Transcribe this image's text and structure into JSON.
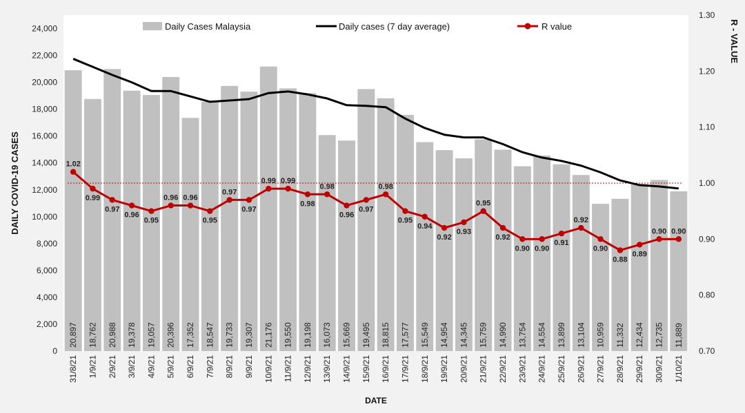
{
  "chart_data": {
    "type": "bar",
    "title": "",
    "xlabel": "DATE",
    "ylabel": "DAILY COVID-19 CASES",
    "y2label": "R - VALUE",
    "ylim": [
      0,
      25000
    ],
    "y2lim": [
      0.7,
      1.3
    ],
    "y_ticks": [
      "0",
      "2,000",
      "4,000",
      "6,000",
      "8,000",
      "10,000",
      "12,000",
      "14,000",
      "16,000",
      "18,000",
      "20,000",
      "22,000",
      "24,000"
    ],
    "y2_ticks": [
      "0.70",
      "0.80",
      "0.90",
      "1.00",
      "1.10",
      "1.20",
      "1.30"
    ],
    "categories": [
      "31/8/21",
      "1/9/21",
      "2/9/21",
      "3/9/21",
      "4/9/21",
      "5/9/21",
      "6/9/21",
      "7/9/21",
      "8/9/21",
      "9/9/21",
      "10/9/21",
      "11/9/21",
      "12/9/21",
      "13/9/21",
      "14/9/21",
      "15/9/21",
      "16/9/21",
      "17/9/21",
      "18/9/21",
      "19/9/21",
      "20/9/21",
      "21/9/21",
      "22/9/21",
      "23/9/21",
      "24/9/21",
      "25/9/21",
      "26/9/21",
      "27/9/21",
      "28/9/21",
      "29/9/21",
      "30/9/21",
      "1/10/21"
    ],
    "series": [
      {
        "name": "Daily Cases Malaysia",
        "axis": "left",
        "kind": "bar",
        "values": [
          20897,
          18762,
          20988,
          19378,
          19057,
          20396,
          17352,
          18547,
          19733,
          19307,
          21176,
          19550,
          19198,
          16073,
          15669,
          19495,
          18815,
          17577,
          15549,
          14954,
          14345,
          15759,
          14990,
          13754,
          14554,
          13899,
          13104,
          10959,
          11332,
          12434,
          12735,
          11889
        ],
        "labels": [
          "20,897",
          "18,762",
          "20,988",
          "19,378",
          "19,057",
          "20,396",
          "17,352",
          "18,547",
          "19,733",
          "19,307",
          "21,176",
          "19,550",
          "19,198",
          "16,073",
          "15,669",
          "19,495",
          "18,815",
          "17,577",
          "15,549",
          "14,954",
          "14,345",
          "15,759",
          "14,990",
          "13,754",
          "14,554",
          "13,899",
          "13,104",
          "10,959",
          "11,332",
          "12,434",
          "12,735",
          "11,889"
        ]
      },
      {
        "name": "Daily cases (7 day average)",
        "axis": "left",
        "kind": "line",
        "values": [
          21750,
          21150,
          20550,
          20000,
          19350,
          19350,
          18950,
          18550,
          18650,
          18750,
          19200,
          19320,
          19100,
          18800,
          18300,
          18250,
          18150,
          17300,
          16600,
          16100,
          15900,
          15900,
          15400,
          14800,
          14400,
          14150,
          13800,
          13300,
          12700,
          12350,
          12250,
          12100
        ]
      },
      {
        "name": "R value",
        "axis": "right",
        "kind": "line-marker",
        "values": [
          1.02,
          0.99,
          0.97,
          0.96,
          0.95,
          0.96,
          0.96,
          0.95,
          0.97,
          0.97,
          0.99,
          0.99,
          0.98,
          0.98,
          0.96,
          0.97,
          0.98,
          0.95,
          0.94,
          0.92,
          0.93,
          0.95,
          0.92,
          0.9,
          0.9,
          0.91,
          0.92,
          0.9,
          0.88,
          0.89,
          0.9,
          0.9
        ],
        "labels": [
          "1.02",
          "0.99",
          "0.97",
          "0.96",
          "0.95",
          "0.96",
          "0.96",
          "0.95",
          "0.97",
          "0.97",
          "0.99",
          "0.99",
          "0.98",
          "0.98",
          "0.96",
          "0.97",
          "0.98",
          "0.95",
          "0.94",
          "0.92",
          "0.93",
          "0.95",
          "0.92",
          "0.90",
          "0.90",
          "0.91",
          "0.92",
          "0.90",
          "0.88",
          "0.89",
          "0.90",
          "0.90"
        ]
      }
    ],
    "reference_line": {
      "axis": "right",
      "value": 1.0,
      "style": "dotted"
    },
    "legend_position": "top",
    "grid": false,
    "colors": {
      "bars": "#c0c0c0",
      "average_line": "#000000",
      "r_value": "#c00000",
      "reference_line": "#c00000",
      "plot_bg": "#ffffff",
      "page_bg": "#f2f2f2"
    }
  }
}
